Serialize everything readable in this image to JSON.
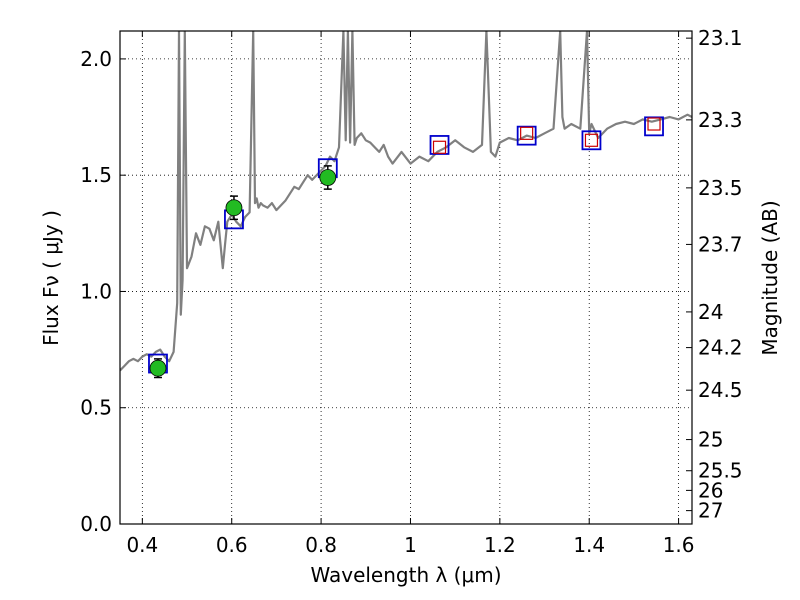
{
  "chart_data": {
    "type": "scatter",
    "xlabel": "Wavelength  λ (μm)",
    "ylabel": "Flux  Fν  ( μJy )",
    "y2label": "Magnitude (AB)",
    "xlim": [
      0.35,
      1.63
    ],
    "ylim": [
      0.0,
      2.12
    ],
    "x_ticks": [
      0.4,
      0.6,
      0.8,
      1.0,
      1.2,
      1.4,
      1.6
    ],
    "x_tick_labels": [
      "0.4",
      "0.6",
      "0.8",
      "1",
      "1.2",
      "1.4",
      "1.6"
    ],
    "y_ticks": [
      0.0,
      0.5,
      1.0,
      1.5,
      2.0
    ],
    "y_tick_labels": [
      "0.0",
      "0.5",
      "1.0",
      "1.5",
      "2.0"
    ],
    "mag_ticks": [
      23.1,
      23.3,
      23.5,
      23.7,
      24,
      24.2,
      24.5,
      25,
      25.5,
      26,
      27
    ],
    "mag_tick_labels": [
      "23.1",
      "23.3",
      "23.5",
      "23.7",
      "24",
      "24.2",
      "24.5",
      "25",
      "25.5",
      "26",
      "27"
    ],
    "grid": true,
    "colors": {
      "spectrum": "#808080",
      "model_box": "#0000cc",
      "nir_box": "#cc0000",
      "observed": "#22bb22"
    },
    "series": [
      {
        "name": "model spectrum",
        "kind": "line",
        "x": [
          0.35,
          0.36,
          0.37,
          0.38,
          0.39,
          0.4,
          0.41,
          0.42,
          0.43,
          0.44,
          0.45,
          0.46,
          0.47,
          0.478,
          0.482,
          0.486,
          0.49,
          0.495,
          0.5,
          0.51,
          0.52,
          0.53,
          0.54,
          0.55,
          0.56,
          0.57,
          0.58,
          0.585,
          0.59,
          0.6,
          0.61,
          0.62,
          0.63,
          0.64,
          0.648,
          0.652,
          0.656,
          0.66,
          0.665,
          0.67,
          0.68,
          0.69,
          0.7,
          0.71,
          0.72,
          0.73,
          0.74,
          0.75,
          0.76,
          0.77,
          0.78,
          0.79,
          0.8,
          0.81,
          0.82,
          0.83,
          0.84,
          0.85,
          0.855,
          0.86,
          0.865,
          0.87,
          0.875,
          0.88,
          0.89,
          0.9,
          0.91,
          0.92,
          0.93,
          0.94,
          0.95,
          0.96,
          0.98,
          1.0,
          1.02,
          1.04,
          1.06,
          1.08,
          1.1,
          1.12,
          1.14,
          1.16,
          1.17,
          1.18,
          1.19,
          1.2,
          1.22,
          1.24,
          1.26,
          1.28,
          1.3,
          1.32,
          1.335,
          1.34,
          1.345,
          1.36,
          1.38,
          1.395,
          1.4,
          1.405,
          1.42,
          1.44,
          1.46,
          1.48,
          1.5,
          1.52,
          1.54,
          1.56,
          1.58,
          1.6,
          1.62,
          1.63
        ],
        "y": [
          0.66,
          0.68,
          0.7,
          0.71,
          0.7,
          0.72,
          0.73,
          0.72,
          0.74,
          0.75,
          0.72,
          0.7,
          0.74,
          0.95,
          2.12,
          0.9,
          1.05,
          2.12,
          1.1,
          1.15,
          1.25,
          1.2,
          1.28,
          1.27,
          1.22,
          1.3,
          1.1,
          1.2,
          1.3,
          1.33,
          1.3,
          1.28,
          1.32,
          1.34,
          2.12,
          1.38,
          1.4,
          1.36,
          1.38,
          1.37,
          1.36,
          1.38,
          1.35,
          1.37,
          1.39,
          1.42,
          1.45,
          1.44,
          1.47,
          1.5,
          1.48,
          1.5,
          1.52,
          1.54,
          1.58,
          1.56,
          1.62,
          2.12,
          1.65,
          2.12,
          1.64,
          2.12,
          1.63,
          1.66,
          1.68,
          1.65,
          1.64,
          1.62,
          1.6,
          1.63,
          1.58,
          1.55,
          1.6,
          1.55,
          1.58,
          1.56,
          1.6,
          1.62,
          1.65,
          1.62,
          1.6,
          1.63,
          2.12,
          1.6,
          1.58,
          1.64,
          1.66,
          1.65,
          1.67,
          1.66,
          1.68,
          1.7,
          2.12,
          1.75,
          1.7,
          1.72,
          1.7,
          2.12,
          1.68,
          1.72,
          1.66,
          1.7,
          1.72,
          1.73,
          1.72,
          1.74,
          1.73,
          1.74,
          1.75,
          1.74,
          1.76,
          1.75
        ]
      },
      {
        "name": "model photometry",
        "kind": "open-square",
        "x": [
          0.435,
          0.605,
          0.815,
          1.065,
          1.26,
          1.405,
          1.545
        ],
        "y": [
          0.69,
          1.31,
          1.53,
          1.63,
          1.67,
          1.65,
          1.71
        ]
      },
      {
        "name": "NIR photometry",
        "kind": "open-square",
        "x": [
          1.065,
          1.26,
          1.405,
          1.545
        ],
        "y": [
          1.62,
          1.68,
          1.65,
          1.72
        ]
      },
      {
        "name": "observed photometry",
        "kind": "filled-circle",
        "x": [
          0.435,
          0.605,
          0.815
        ],
        "y": [
          0.67,
          1.36,
          1.49
        ],
        "yerr": [
          0.04,
          0.05,
          0.05
        ]
      }
    ]
  }
}
